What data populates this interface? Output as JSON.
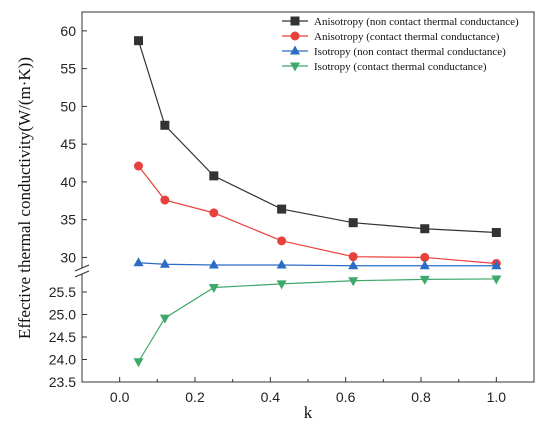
{
  "chart_data": {
    "type": "line",
    "xlabel": "k",
    "ylabel": "Effective thermal conductivity(W/(m·K))",
    "xlim": [
      -0.1,
      1.1
    ],
    "xticks": [
      "0.0",
      "0.2",
      "0.4",
      "0.6",
      "0.8",
      "1.0"
    ],
    "x_tick_values": [
      0.0,
      0.2,
      0.4,
      0.6,
      0.8,
      1.0
    ],
    "y_axis_break": {
      "lower_range": [
        23.5,
        25.9
      ],
      "upper_range": [
        28.6,
        62.5
      ]
    },
    "yticks_upper": [
      "30",
      "35",
      "40",
      "45",
      "50",
      "55",
      "60"
    ],
    "y_tick_values_upper": [
      30,
      35,
      40,
      45,
      50,
      55,
      60
    ],
    "yticks_lower": [
      "23.5",
      "24.0",
      "24.5",
      "25.0",
      "25.5"
    ],
    "y_tick_values_lower": [
      23.5,
      24.0,
      24.5,
      25.0,
      25.5
    ],
    "grid": false,
    "legend_position": "top-right",
    "x": [
      0.05,
      0.12,
      0.25,
      0.43,
      0.62,
      0.81,
      1.0
    ],
    "series": [
      {
        "name": "Anisotropy (non contact thermal conductance)",
        "marker": "square",
        "color": "#333333",
        "values": [
          58.7,
          47.5,
          40.8,
          36.4,
          34.6,
          33.8,
          33.3
        ]
      },
      {
        "name": "Anisotropy (contact thermal conductance)",
        "marker": "circle",
        "color": "#e8413c",
        "values": [
          42.1,
          37.6,
          35.9,
          32.2,
          30.1,
          30.0,
          29.2
        ]
      },
      {
        "name": "Isotropy (non contact thermal conductance)",
        "marker": "triangle-up",
        "color": "#2b6cc4",
        "values": [
          29.3,
          29.1,
          29.0,
          29.0,
          28.9,
          28.9,
          28.9
        ]
      },
      {
        "name": "Isotropy (contact thermal conductance)",
        "marker": "triangle-down",
        "color": "#3fa86b",
        "values": [
          23.95,
          24.92,
          25.6,
          25.68,
          25.75,
          25.78,
          25.79
        ]
      }
    ]
  }
}
